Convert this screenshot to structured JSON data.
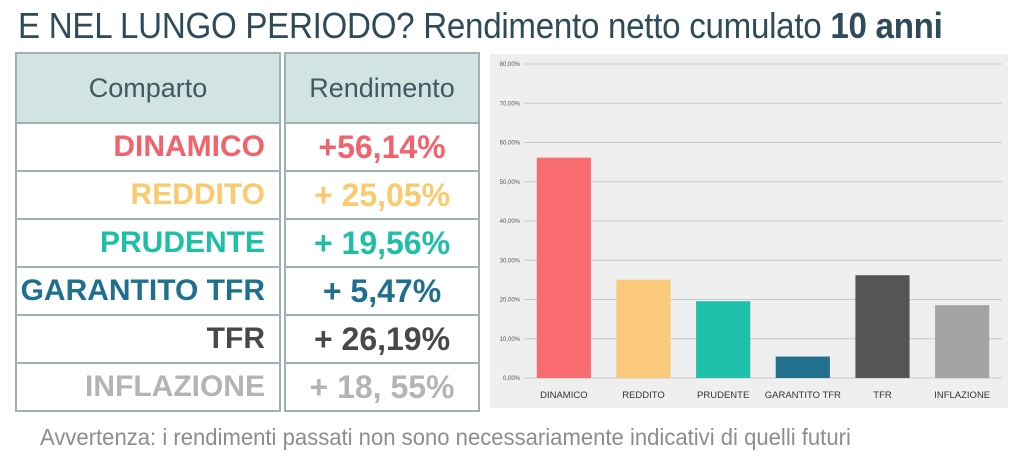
{
  "title": {
    "lead": "E NEL LUNGO PERIODO?",
    "rest": " Rendimento netto cumulato ",
    "bold": "10 anni"
  },
  "table": {
    "headers": [
      "Comparto",
      "Rendimento"
    ],
    "rows": [
      {
        "comparto": "DINAMICO",
        "rendimento": "+56,14%",
        "color": "#f2636b"
      },
      {
        "comparto": "REDDITO",
        "rendimento": "+ 25,05%",
        "color": "#fbc96e"
      },
      {
        "comparto": "PRUDENTE",
        "rendimento": "+ 19,56%",
        "color": "#1dbfa7"
      },
      {
        "comparto": "GARANTITO TFR",
        "rendimento": "+ 5,47%",
        "color": "#1f6f8f"
      },
      {
        "comparto": "TFR",
        "rendimento": "+ 26,19%",
        "color": "#484848"
      },
      {
        "comparto": "INFLAZIONE",
        "rendimento": "+ 18, 55%",
        "color": "#b4b4b4"
      }
    ]
  },
  "chart_data": {
    "type": "bar",
    "categories": [
      "DINAMICO",
      "REDDITO",
      "PRUDENTE",
      "GARANTITO TFR",
      "TFR",
      "INFLAZIONE"
    ],
    "values": [
      56.14,
      25.05,
      19.56,
      5.47,
      26.19,
      18.55
    ],
    "colors": [
      "#f86c72",
      "#fbc97a",
      "#1fc0aa",
      "#236f8e",
      "#555555",
      "#a3a3a3"
    ],
    "yticks": [
      "0,00%",
      "10,00%",
      "20,00%",
      "30,00%",
      "40,00%",
      "50,00%",
      "60,00%",
      "70,00%",
      "80,00%"
    ],
    "ylim": [
      0,
      80
    ],
    "grid": true,
    "background": "#efefef"
  },
  "disclaimer": "Avvertenza: i rendimenti passati non sono necessariamente indicativi di quelli futuri"
}
